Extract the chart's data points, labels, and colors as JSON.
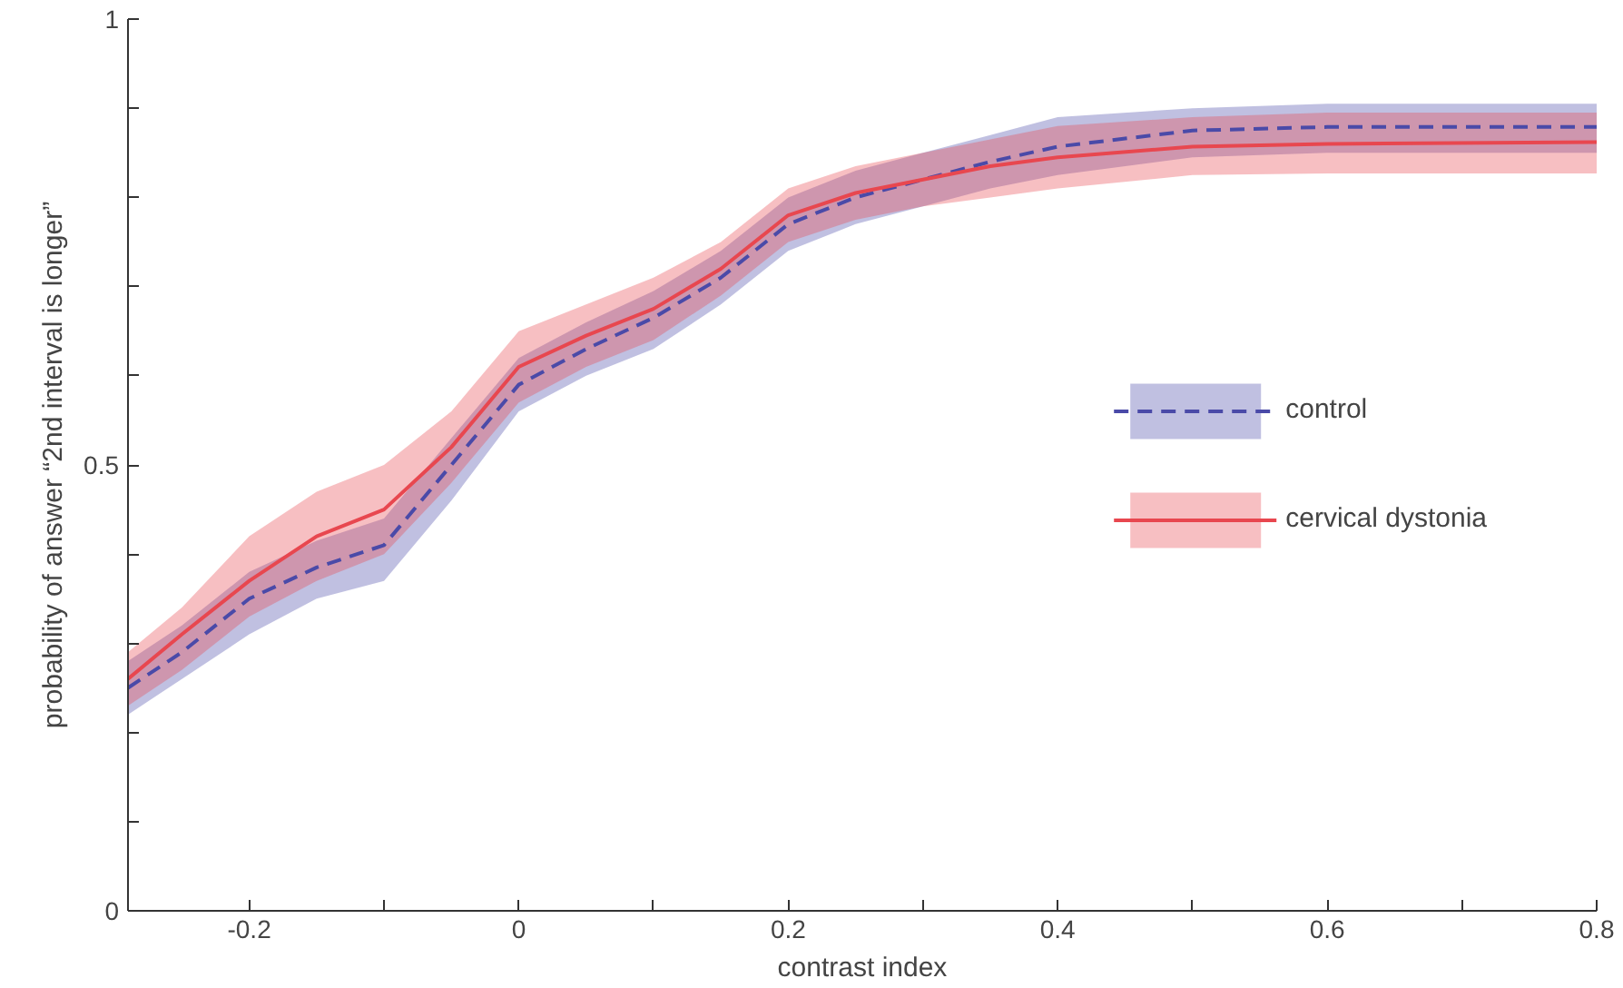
{
  "chart_data": {
    "type": "line",
    "xlabel": "contrast index",
    "ylabel": "probability of answer “2nd interval is longer”",
    "x": [
      -0.29,
      -0.25,
      -0.2,
      -0.15,
      -0.1,
      -0.05,
      0,
      0.05,
      0.1,
      0.15,
      0.2,
      0.25,
      0.3,
      0.35,
      0.4,
      0.5,
      0.6,
      0.8
    ],
    "series": [
      {
        "name": "control",
        "color": "#4a4aa8",
        "line_style": "dashed",
        "values": [
          0.25,
          0.29,
          0.35,
          0.385,
          0.41,
          0.5,
          0.59,
          0.63,
          0.665,
          0.71,
          0.77,
          0.8,
          0.82,
          0.84,
          0.857,
          0.875,
          0.879,
          0.879
        ],
        "lower": [
          0.22,
          0.26,
          0.31,
          0.35,
          0.37,
          0.46,
          0.56,
          0.6,
          0.63,
          0.68,
          0.74,
          0.77,
          0.79,
          0.81,
          0.825,
          0.845,
          0.85,
          0.85
        ],
        "upper": [
          0.28,
          0.32,
          0.38,
          0.415,
          0.44,
          0.53,
          0.62,
          0.66,
          0.695,
          0.74,
          0.8,
          0.83,
          0.85,
          0.87,
          0.89,
          0.9,
          0.905,
          0.905
        ]
      },
      {
        "name": "cervical dystonia",
        "color": "#e8474f",
        "line_style": "solid",
        "values": [
          0.26,
          0.31,
          0.37,
          0.42,
          0.45,
          0.52,
          0.61,
          0.645,
          0.675,
          0.72,
          0.78,
          0.805,
          0.82,
          0.835,
          0.845,
          0.857,
          0.86,
          0.862
        ],
        "lower": [
          0.23,
          0.27,
          0.33,
          0.37,
          0.4,
          0.48,
          0.57,
          0.61,
          0.64,
          0.69,
          0.75,
          0.775,
          0.79,
          0.8,
          0.81,
          0.825,
          0.827,
          0.827
        ],
        "upper": [
          0.29,
          0.34,
          0.42,
          0.47,
          0.5,
          0.56,
          0.65,
          0.68,
          0.71,
          0.75,
          0.81,
          0.835,
          0.85,
          0.865,
          0.88,
          0.89,
          0.895,
          0.895
        ]
      }
    ],
    "xlim": [
      -0.29,
      0.8
    ],
    "ylim": [
      0,
      1
    ],
    "xticks": [
      -0.2,
      {
        "value": -0.1,
        "label": null
      },
      0,
      {
        "value": 0.1,
        "label": null
      },
      0.2,
      {
        "value": 0.3,
        "label": null
      },
      0.4,
      {
        "value": 0.5,
        "label": null
      },
      0.6,
      {
        "value": 0.7,
        "label": null
      },
      0.8
    ],
    "yticks": [
      0,
      {
        "value": 0.1,
        "label": null
      },
      {
        "value": 0.2,
        "label": null
      },
      {
        "value": 0.3,
        "label": null
      },
      {
        "value": 0.4,
        "label": null
      },
      0.5,
      {
        "value": 0.6,
        "label": null
      },
      {
        "value": 0.7,
        "label": null
      },
      {
        "value": 0.8,
        "label": null
      },
      {
        "value": 0.9,
        "label": null
      },
      1
    ],
    "grid": false,
    "legend": "right",
    "marker": "none"
  }
}
